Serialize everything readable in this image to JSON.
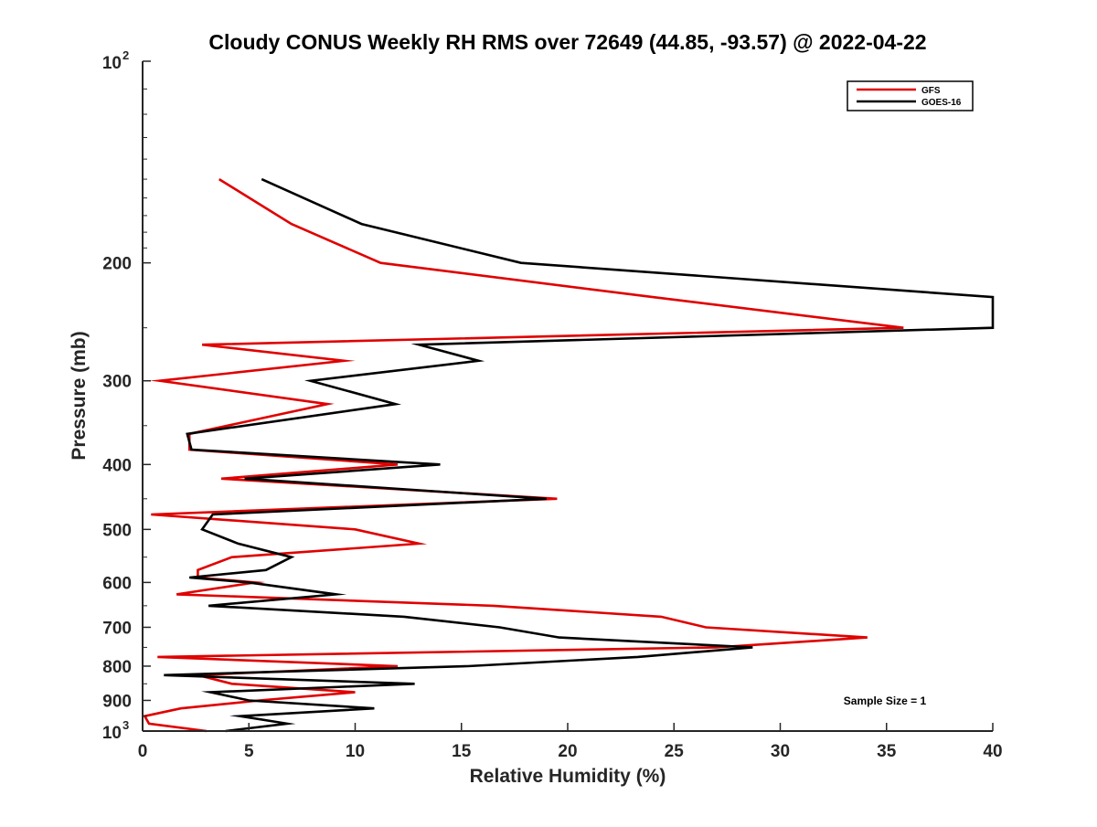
{
  "chart_data": {
    "type": "line",
    "title": "Cloudy CONUS Weekly RH RMS over 72649 (44.85, -93.57) @ 2022-04-22",
    "xlabel": "Relative Humidity (%)",
    "ylabel": "Pressure (mb)",
    "xlim": [
      0,
      40
    ],
    "ylim": [
      100,
      1000
    ],
    "y_scale": "log",
    "y_reversed": true,
    "grid": false,
    "legend_position": "top-right",
    "x_ticks": [
      "0",
      "5",
      "10",
      "15",
      "20",
      "25",
      "30",
      "35",
      "40"
    ],
    "y_ticks": [
      {
        "value": 100,
        "base": "10",
        "exp": "2"
      },
      {
        "value": 200,
        "label": "200"
      },
      {
        "value": 300,
        "label": "300"
      },
      {
        "value": 400,
        "label": "400"
      },
      {
        "value": 500,
        "label": "500"
      },
      {
        "value": 600,
        "label": "600"
      },
      {
        "value": 700,
        "label": "700"
      },
      {
        "value": 800,
        "label": "800"
      },
      {
        "value": 900,
        "label": "900"
      },
      {
        "value": 1000,
        "base": "10",
        "exp": "3"
      }
    ],
    "annotation": "Sample Size = 1",
    "series": [
      {
        "name": "GFS",
        "color": "#e00000",
        "points": [
          {
            "p": 150,
            "rh": 3.6
          },
          {
            "p": 175,
            "rh": 7.0
          },
          {
            "p": 200,
            "rh": 11.2
          },
          {
            "p": 225,
            "rh": 24.0
          },
          {
            "p": 250,
            "rh": 35.8
          },
          {
            "p": 265,
            "rh": 2.8
          },
          {
            "p": 280,
            "rh": 9.5
          },
          {
            "p": 300,
            "rh": 0.8
          },
          {
            "p": 325,
            "rh": 8.7
          },
          {
            "p": 360,
            "rh": 2.2
          },
          {
            "p": 380,
            "rh": 2.2
          },
          {
            "p": 400,
            "rh": 12.0
          },
          {
            "p": 420,
            "rh": 3.7
          },
          {
            "p": 450,
            "rh": 19.5
          },
          {
            "p": 475,
            "rh": 0.4
          },
          {
            "p": 500,
            "rh": 10.0
          },
          {
            "p": 525,
            "rh": 13.0
          },
          {
            "p": 550,
            "rh": 4.2
          },
          {
            "p": 575,
            "rh": 2.6
          },
          {
            "p": 590,
            "rh": 2.6
          },
          {
            "p": 600,
            "rh": 5.3
          },
          {
            "p": 625,
            "rh": 1.6
          },
          {
            "p": 650,
            "rh": 16.5
          },
          {
            "p": 675,
            "rh": 24.4
          },
          {
            "p": 700,
            "rh": 26.5
          },
          {
            "p": 725,
            "rh": 34.1
          },
          {
            "p": 750,
            "rh": 27.0
          },
          {
            "p": 775,
            "rh": 0.7
          },
          {
            "p": 800,
            "rh": 12.0
          },
          {
            "p": 825,
            "rh": 2.6
          },
          {
            "p": 850,
            "rh": 4.2
          },
          {
            "p": 875,
            "rh": 10.0
          },
          {
            "p": 900,
            "rh": 5.5
          },
          {
            "p": 925,
            "rh": 1.8
          },
          {
            "p": 950,
            "rh": 0.1
          },
          {
            "p": 975,
            "rh": 0.3
          },
          {
            "p": 1000,
            "rh": 3.0
          }
        ]
      },
      {
        "name": "GOES-16",
        "color": "#000000",
        "points": [
          {
            "p": 150,
            "rh": 5.6
          },
          {
            "p": 175,
            "rh": 10.3
          },
          {
            "p": 200,
            "rh": 17.8
          },
          {
            "p": 225,
            "rh": 40.0
          },
          {
            "p": 250,
            "rh": 40.0
          },
          {
            "p": 265,
            "rh": 13.0
          },
          {
            "p": 280,
            "rh": 15.8
          },
          {
            "p": 300,
            "rh": 7.9
          },
          {
            "p": 325,
            "rh": 11.9
          },
          {
            "p": 360,
            "rh": 2.1
          },
          {
            "p": 380,
            "rh": 2.3
          },
          {
            "p": 400,
            "rh": 14.0
          },
          {
            "p": 420,
            "rh": 4.8
          },
          {
            "p": 450,
            "rh": 19.0
          },
          {
            "p": 475,
            "rh": 3.3
          },
          {
            "p": 500,
            "rh": 2.8
          },
          {
            "p": 525,
            "rh": 4.5
          },
          {
            "p": 550,
            "rh": 7.0
          },
          {
            "p": 575,
            "rh": 5.8
          },
          {
            "p": 590,
            "rh": 2.2
          },
          {
            "p": 600,
            "rh": 5.0
          },
          {
            "p": 625,
            "rh": 9.1
          },
          {
            "p": 650,
            "rh": 3.1
          },
          {
            "p": 675,
            "rh": 12.3
          },
          {
            "p": 700,
            "rh": 16.8
          },
          {
            "p": 725,
            "rh": 19.6
          },
          {
            "p": 750,
            "rh": 28.7
          },
          {
            "p": 775,
            "rh": 23.3
          },
          {
            "p": 800,
            "rh": 15.3
          },
          {
            "p": 825,
            "rh": 1.0
          },
          {
            "p": 850,
            "rh": 12.8
          },
          {
            "p": 875,
            "rh": 3.2
          },
          {
            "p": 900,
            "rh": 5.0
          },
          {
            "p": 925,
            "rh": 10.9
          },
          {
            "p": 950,
            "rh": 4.6
          },
          {
            "p": 975,
            "rh": 6.8
          },
          {
            "p": 1000,
            "rh": 3.9
          }
        ]
      }
    ]
  }
}
